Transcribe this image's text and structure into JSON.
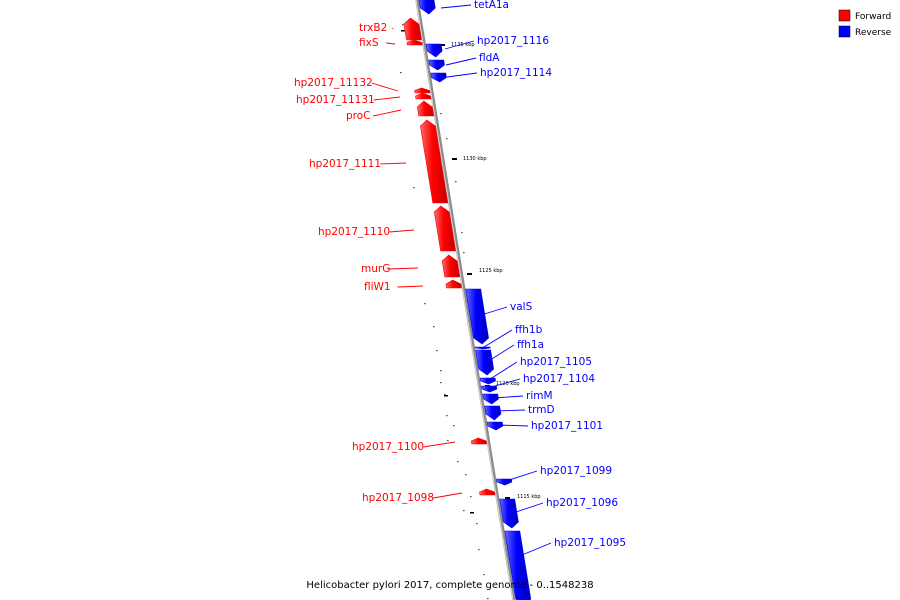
{
  "caption": "Helicobacter pylori 2017, complete genome - 0..1548238",
  "legend": [
    {
      "label": "Forward",
      "color": "#ff0000"
    },
    {
      "label": "Reverse",
      "color": "#0000ff"
    }
  ],
  "colors": {
    "forward": "#ff0000",
    "reverse": "#0000ff",
    "backbone": "#999999"
  },
  "ticks": [
    "1135 kbp",
    "1130 kbp",
    "1125 kbp",
    "1120 kbp",
    "1115 kbp"
  ],
  "genes": [
    {
      "name": "tetA1a",
      "strand": "reverse"
    },
    {
      "name": "trxB2",
      "strand": "forward"
    },
    {
      "name": "fixS",
      "strand": "forward"
    },
    {
      "name": "hp2017_1116",
      "strand": "reverse"
    },
    {
      "name": "fldA",
      "strand": "reverse"
    },
    {
      "name": "hp2017_1114",
      "strand": "reverse"
    },
    {
      "name": "hp2017_11132",
      "strand": "forward"
    },
    {
      "name": "hp2017_11131",
      "strand": "forward"
    },
    {
      "name": "proC",
      "strand": "forward"
    },
    {
      "name": "hp2017_1111",
      "strand": "forward"
    },
    {
      "name": "hp2017_1110",
      "strand": "forward"
    },
    {
      "name": "murG",
      "strand": "forward"
    },
    {
      "name": "fliW1",
      "strand": "forward"
    },
    {
      "name": "valS",
      "strand": "reverse"
    },
    {
      "name": "ffh1b",
      "strand": "reverse"
    },
    {
      "name": "ffh1a",
      "strand": "reverse"
    },
    {
      "name": "hp2017_1105",
      "strand": "reverse"
    },
    {
      "name": "hp2017_1104",
      "strand": "reverse"
    },
    {
      "name": "rimM",
      "strand": "reverse"
    },
    {
      "name": "trmD",
      "strand": "reverse"
    },
    {
      "name": "hp2017_1101",
      "strand": "reverse"
    },
    {
      "name": "hp2017_1100",
      "strand": "forward"
    },
    {
      "name": "hp2017_1099",
      "strand": "reverse"
    },
    {
      "name": "hp2017_1098",
      "strand": "forward"
    },
    {
      "name": "hp2017_1096",
      "strand": "reverse"
    },
    {
      "name": "hp2017_1095",
      "strand": "reverse"
    }
  ]
}
